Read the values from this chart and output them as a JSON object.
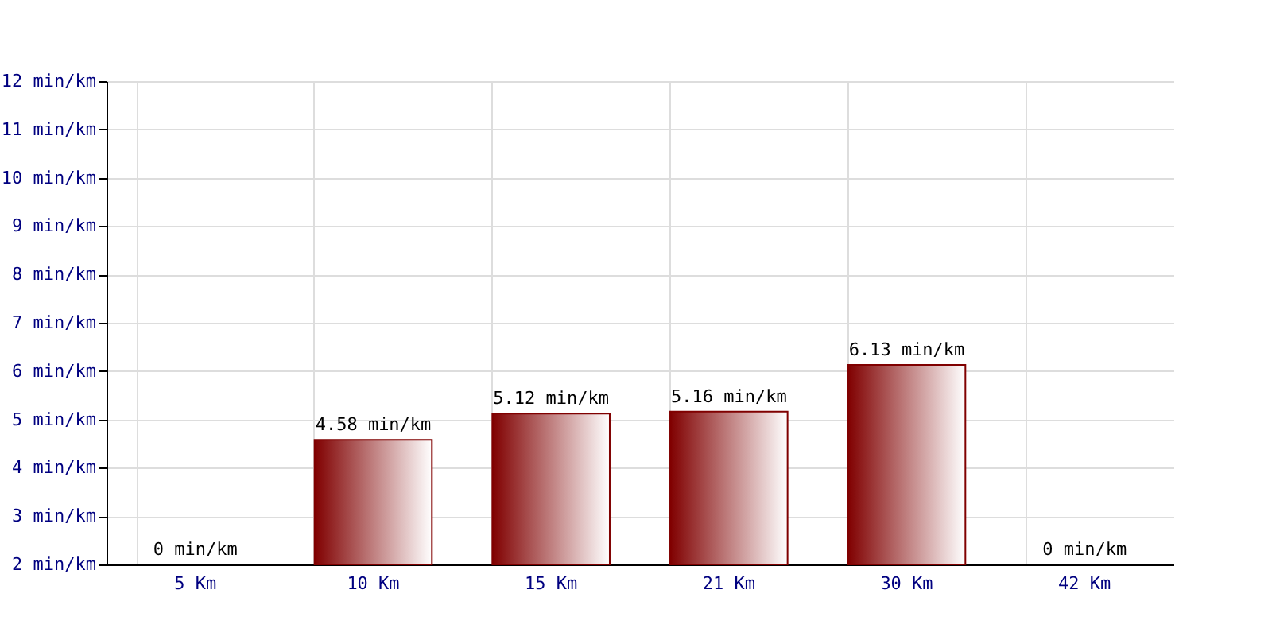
{
  "chart_data": {
    "type": "bar",
    "categories": [
      "5 Km",
      "10 Km",
      "15 Km",
      "21 Km",
      "30 Km",
      "42 Km"
    ],
    "series": [
      {
        "color": "#800000",
        "values": [
          null,
          4.58,
          5.12,
          5.16,
          6.13,
          null
        ],
        "value_labels": [
          "0 min/km",
          "4.58 min/km",
          "5.12 min/km",
          "5.16 min/km",
          "6.13 min/km",
          "0 min/km"
        ]
      }
    ],
    "ylim": [
      2,
      12
    ],
    "yticks": [
      {
        "value": 2,
        "label": "2 min/km"
      },
      {
        "value": 3,
        "label": "3 min/km"
      },
      {
        "value": 4,
        "label": "4 min/km"
      },
      {
        "value": 5,
        "label": "5 min/km"
      },
      {
        "value": 6,
        "label": "6 min/km"
      },
      {
        "value": 7,
        "label": "7 min/km"
      },
      {
        "value": 8,
        "label": "8 min/km"
      },
      {
        "value": 9,
        "label": "9 min/km"
      },
      {
        "value": 10,
        "label": "10 min/km"
      },
      {
        "value": 11,
        "label": "11 min/km"
      },
      {
        "value": 12,
        "label": "12 min/km"
      }
    ],
    "grid": true
  }
}
